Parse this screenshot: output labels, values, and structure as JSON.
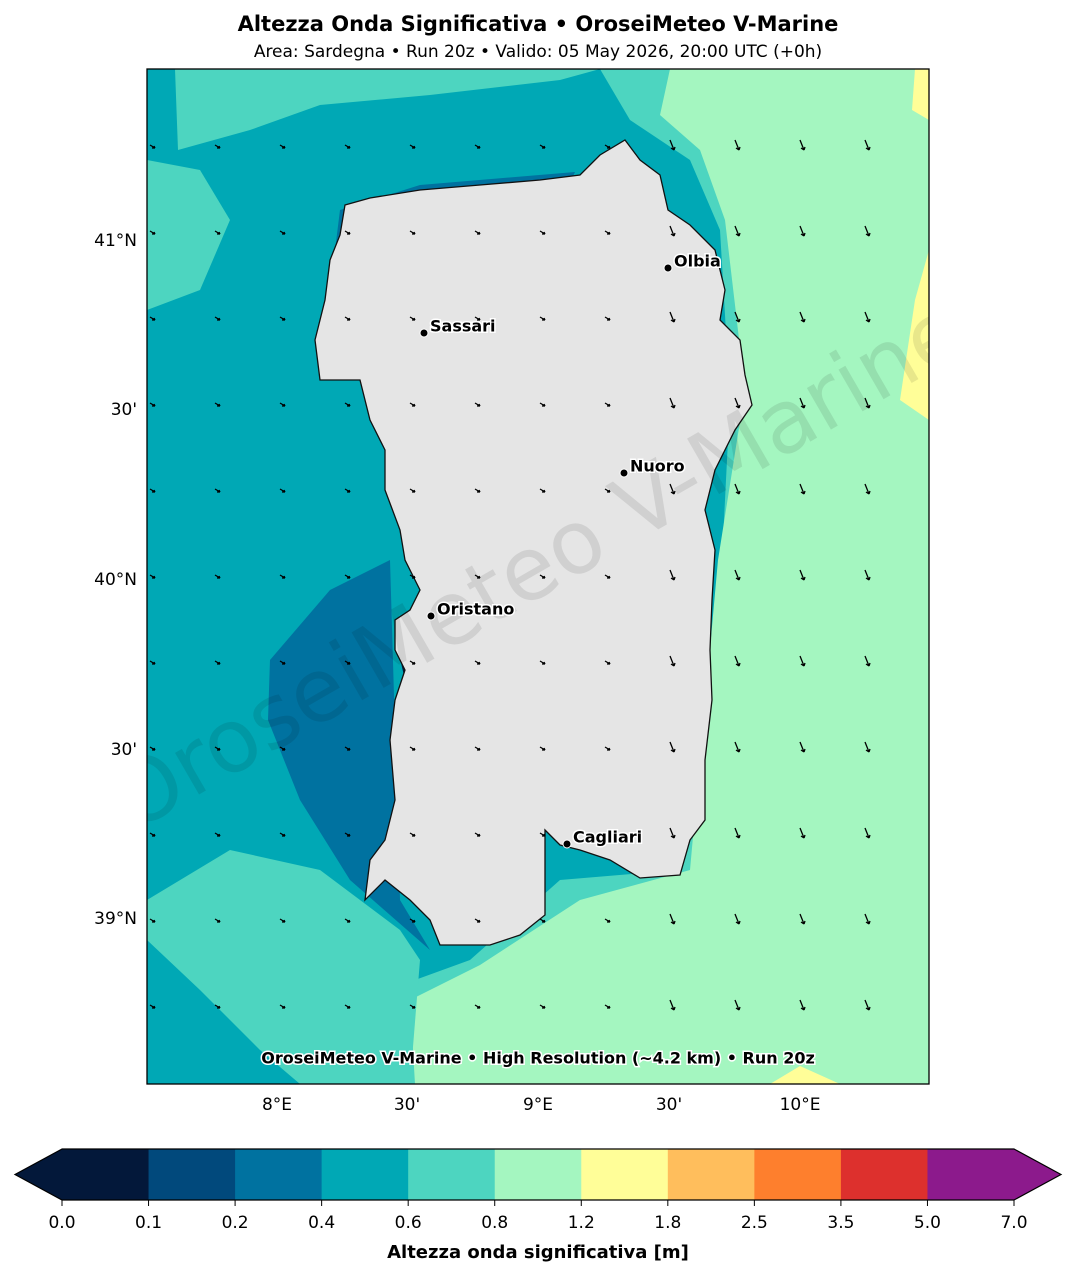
{
  "header": {
    "title": "Altezza Onda Significativa • OroseiMeteo V-Marine",
    "subtitle": "Area: Sardegna • Run 20z • Valido: 05 May 2026, 20:00 UTC (+0h)"
  },
  "map": {
    "lat_labels": [
      "41°N",
      "30'",
      "40°N",
      "30'",
      "39°N"
    ],
    "lon_labels": [
      "8°E",
      "30'",
      "9°E",
      "30'",
      "10°E"
    ],
    "cities": [
      "Olbia",
      "Sassari",
      "Nuoro",
      "Oristano",
      "Cagliari"
    ],
    "caption": "OroseiMeteo V-Marine • High Resolution (~4.2 km) • Run 20z",
    "watermark": "OroseiMeteo V-Marine"
  },
  "colorbar": {
    "label": "Altezza onda significativa [m]",
    "ticks": [
      {
        "value": 0,
        "label": "0.0"
      },
      0.1,
      0.2,
      0.4,
      0.6,
      0.8,
      1.2,
      1.8,
      2.5,
      3.5,
      {
        "value": 5,
        "label": "5.0"
      },
      {
        "value": 7,
        "label": "7.0"
      }
    ],
    "colors": [
      "#03183a",
      "#01497c",
      "#0072a0",
      "#00a8b5",
      "#4dd5c0",
      "#a4f6c0",
      "#fffe98",
      "#ffbe5c",
      "#fe7f2d",
      "#dd302d",
      "#8c1a8c"
    ]
  }
}
